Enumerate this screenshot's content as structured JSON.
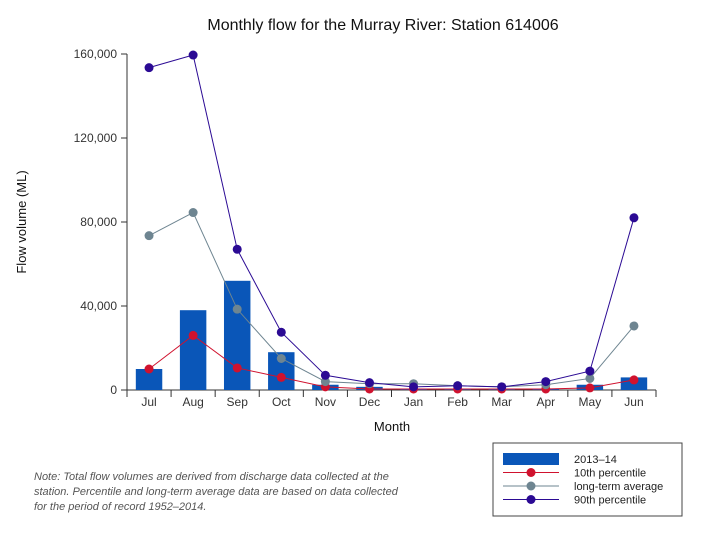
{
  "chart_data": {
    "type": "bar",
    "title": "Monthly flow for the Murray River: Station 614006",
    "xlabel": "Month",
    "ylabel": "Flow volume (ML)",
    "ylim": [
      0,
      160000
    ],
    "yticks": [
      0,
      40000,
      80000,
      120000,
      160000
    ],
    "ytick_labels": [
      "0",
      "40,000",
      "80,000",
      "120,000",
      "160,000"
    ],
    "categories": [
      "Jul",
      "Aug",
      "Sep",
      "Oct",
      "Nov",
      "Dec",
      "Jan",
      "Feb",
      "Mar",
      "Apr",
      "May",
      "Jun"
    ],
    "series": [
      {
        "name": "2013–14",
        "kind": "bar",
        "color": "#0a56b8",
        "values": [
          10000,
          38000,
          52000,
          18000,
          2500,
          1500,
          500,
          500,
          500,
          500,
          2500,
          6000
        ]
      },
      {
        "name": "10th percentile",
        "kind": "line",
        "color": "#d0122e",
        "values": [
          10000,
          26000,
          10500,
          6000,
          1500,
          500,
          500,
          500,
          500,
          500,
          1000,
          4800
        ]
      },
      {
        "name": "long-term average",
        "kind": "line",
        "color": "#6e8591",
        "values": [
          73500,
          84500,
          38500,
          15000,
          4000,
          3000,
          3000,
          2000,
          1500,
          2500,
          5500,
          30500
        ]
      },
      {
        "name": "90th percentile",
        "kind": "line",
        "color": "#2b0a94",
        "values": [
          153500,
          159500,
          67000,
          27500,
          7000,
          3500,
          1500,
          2000,
          1500,
          4000,
          9000,
          82000
        ]
      }
    ],
    "legend_position": "bottom-right",
    "grid": false
  },
  "note": "Note: Total flow volumes are derived from discharge data collected at the station. Percentile and long-term average data are based on data collected for the period of record 1952–2014."
}
